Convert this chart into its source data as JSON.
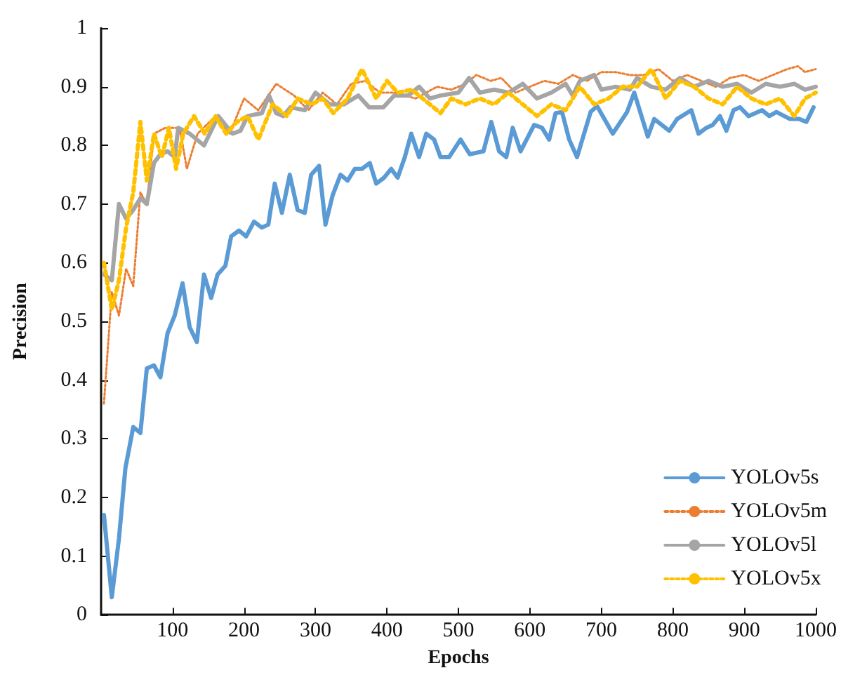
{
  "chart_data": {
    "type": "line",
    "xlabel": "Epochs",
    "ylabel": "Precision",
    "xlim": [
      0,
      1000
    ],
    "xticks": [
      100,
      200,
      300,
      400,
      500,
      600,
      700,
      800,
      900,
      1000
    ],
    "ylim": [
      0,
      1
    ],
    "yticks": [
      0,
      0.1,
      0.2,
      0.3,
      0.4,
      0.5,
      0.6,
      0.7,
      0.8,
      0.9,
      1
    ],
    "grid": false,
    "legend": "right",
    "marker": "none",
    "series": [
      {
        "name": "YOLOv5s",
        "color": "#5b9bd5",
        "line_style": "solid",
        "x": [
          4,
          15,
          25,
          34,
          45,
          55,
          64,
          74,
          83,
          93,
          103,
          114,
          124,
          134,
          144,
          154,
          163,
          174,
          182,
          193,
          203,
          214,
          225,
          234,
          243,
          253,
          264,
          275,
          285,
          294,
          305,
          314,
          324,
          335,
          345,
          355,
          365,
          376,
          385,
          396,
          406,
          415,
          425,
          434,
          445,
          455,
          466,
          475,
          487,
          503,
          516,
          535,
          546,
          557,
          567,
          576,
          587,
          606,
          617,
          627,
          636,
          645,
          655,
          666,
          685,
          694,
          716,
          736,
          746,
          765,
          774,
          795,
          806,
          826,
          836,
          847,
          856,
          866,
          875,
          885,
          894,
          906,
          925,
          935,
          945,
          964,
          977,
          987,
          997
        ],
        "values": [
          0.17,
          0.03,
          0.13,
          0.25,
          0.32,
          0.31,
          0.42,
          0.425,
          0.405,
          0.48,
          0.51,
          0.565,
          0.49,
          0.465,
          0.58,
          0.54,
          0.58,
          0.595,
          0.645,
          0.655,
          0.645,
          0.67,
          0.66,
          0.665,
          0.735,
          0.685,
          0.75,
          0.69,
          0.685,
          0.75,
          0.765,
          0.665,
          0.715,
          0.75,
          0.74,
          0.76,
          0.76,
          0.77,
          0.735,
          0.745,
          0.76,
          0.745,
          0.78,
          0.82,
          0.78,
          0.82,
          0.81,
          0.78,
          0.78,
          0.81,
          0.785,
          0.79,
          0.84,
          0.79,
          0.78,
          0.83,
          0.79,
          0.835,
          0.83,
          0.81,
          0.855,
          0.857,
          0.81,
          0.78,
          0.857,
          0.867,
          0.82,
          0.857,
          0.89,
          0.815,
          0.845,
          0.825,
          0.845,
          0.86,
          0.82,
          0.83,
          0.835,
          0.85,
          0.825,
          0.86,
          0.865,
          0.85,
          0.86,
          0.85,
          0.857,
          0.845,
          0.845,
          0.84,
          0.865
        ]
      },
      {
        "name": "YOLOv5m",
        "color": "#ed7d31",
        "line_style": "dotted",
        "x": [
          4,
          15,
          25,
          35,
          45,
          55,
          64,
          74,
          90,
          110,
          120,
          135,
          160,
          180,
          200,
          220,
          245,
          270,
          290,
          310,
          330,
          350,
          370,
          390,
          410,
          440,
          470,
          490,
          510,
          525,
          545,
          560,
          580,
          600,
          620,
          640,
          660,
          680,
          700,
          720,
          740,
          760,
          780,
          800,
          820,
          840,
          860,
          880,
          900,
          920,
          940,
          960,
          975,
          985,
          1000
        ],
        "values": [
          0.36,
          0.55,
          0.51,
          0.59,
          0.56,
          0.72,
          0.7,
          0.82,
          0.83,
          0.83,
          0.76,
          0.82,
          0.85,
          0.82,
          0.88,
          0.86,
          0.905,
          0.885,
          0.86,
          0.89,
          0.87,
          0.905,
          0.91,
          0.89,
          0.89,
          0.88,
          0.9,
          0.895,
          0.905,
          0.92,
          0.91,
          0.915,
          0.89,
          0.9,
          0.91,
          0.905,
          0.92,
          0.91,
          0.925,
          0.925,
          0.92,
          0.92,
          0.93,
          0.91,
          0.92,
          0.91,
          0.9,
          0.915,
          0.92,
          0.91,
          0.92,
          0.93,
          0.935,
          0.925,
          0.93
        ]
      },
      {
        "name": "YOLOv5l",
        "color": "#a5a5a5",
        "line_style": "solid",
        "x": [
          4,
          15,
          25,
          35,
          45,
          55,
          64,
          74,
          83,
          93,
          103,
          108,
          124,
          144,
          164,
          184,
          195,
          205,
          225,
          235,
          245,
          255,
          265,
          285,
          300,
          320,
          340,
          360,
          375,
          395,
          410,
          430,
          445,
          460,
          475,
          500,
          515,
          530,
          550,
          570,
          590,
          610,
          630,
          650,
          660,
          670,
          690,
          700,
          720,
          740,
          750,
          770,
          790,
          810,
          830,
          850,
          870,
          890,
          910,
          930,
          950,
          970,
          985,
          1000
        ],
        "values": [
          0.58,
          0.57,
          0.7,
          0.675,
          0.69,
          0.71,
          0.7,
          0.77,
          0.785,
          0.79,
          0.78,
          0.83,
          0.82,
          0.8,
          0.85,
          0.82,
          0.825,
          0.85,
          0.855,
          0.885,
          0.855,
          0.85,
          0.865,
          0.86,
          0.89,
          0.87,
          0.87,
          0.885,
          0.865,
          0.865,
          0.885,
          0.885,
          0.9,
          0.88,
          0.885,
          0.89,
          0.915,
          0.89,
          0.895,
          0.89,
          0.905,
          0.88,
          0.89,
          0.905,
          0.885,
          0.91,
          0.92,
          0.895,
          0.9,
          0.895,
          0.915,
          0.9,
          0.895,
          0.915,
          0.9,
          0.91,
          0.9,
          0.905,
          0.89,
          0.905,
          0.9,
          0.905,
          0.895,
          0.9
        ]
      },
      {
        "name": "YOLOv5x",
        "color": "#ffc000",
        "line_style": "dotted",
        "x": [
          4,
          15,
          25,
          35,
          45,
          55,
          64,
          74,
          85,
          95,
          105,
          115,
          130,
          145,
          160,
          175,
          190,
          205,
          220,
          240,
          260,
          275,
          295,
          310,
          325,
          345,
          365,
          385,
          400,
          415,
          435,
          455,
          475,
          490,
          510,
          530,
          550,
          570,
          590,
          610,
          630,
          650,
          670,
          690,
          710,
          730,
          750,
          770,
          790,
          810,
          830,
          850,
          870,
          890,
          910,
          930,
          950,
          970,
          985,
          1000
        ],
        "values": [
          0.6,
          0.52,
          0.57,
          0.66,
          0.72,
          0.84,
          0.74,
          0.82,
          0.78,
          0.83,
          0.76,
          0.82,
          0.85,
          0.82,
          0.85,
          0.82,
          0.84,
          0.85,
          0.81,
          0.87,
          0.85,
          0.88,
          0.87,
          0.88,
          0.855,
          0.88,
          0.93,
          0.88,
          0.91,
          0.89,
          0.895,
          0.875,
          0.855,
          0.88,
          0.87,
          0.88,
          0.87,
          0.89,
          0.87,
          0.85,
          0.87,
          0.86,
          0.9,
          0.87,
          0.88,
          0.9,
          0.9,
          0.93,
          0.88,
          0.91,
          0.9,
          0.88,
          0.87,
          0.9,
          0.88,
          0.87,
          0.88,
          0.85,
          0.88,
          0.89
        ]
      }
    ]
  }
}
